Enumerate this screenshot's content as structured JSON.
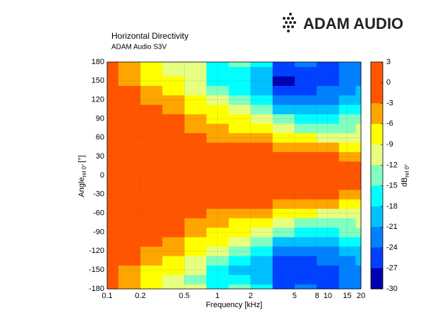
{
  "logo": "ADAM AUDIO",
  "chart_data": {
    "type": "heatmap",
    "title": "Horizontal Directivity",
    "subtitle": "ADAM Audio S3V",
    "xlabel": "Frequency [kHz]",
    "ylabel": "Angle",
    "ylabel_sub": "rel 0°",
    "ylabel_unit": "[°]",
    "colorbar_label": "dB",
    "colorbar_label_sub": "rel 0°",
    "xscale": "log",
    "grid": true,
    "xlim": [
      0.1,
      20
    ],
    "ylim": [
      -180,
      180
    ],
    "xticks": [
      0.1,
      0.2,
      0.5,
      1,
      2,
      5,
      8,
      10,
      15,
      20
    ],
    "yticks": [
      -180,
      -150,
      -120,
      -90,
      -60,
      -30,
      0,
      30,
      60,
      90,
      120,
      150,
      180
    ],
    "x": [
      0.1,
      0.16,
      0.25,
      0.4,
      0.63,
      1,
      1.6,
      2.5,
      4,
      6.3,
      10,
      16,
      20
    ],
    "y": [
      -180,
      -165,
      -150,
      -135,
      -120,
      -105,
      -90,
      -75,
      -60,
      -45,
      -30,
      -15,
      0,
      15,
      30,
      45,
      60,
      75,
      90,
      105,
      120,
      135,
      150,
      165,
      180
    ],
    "z": [
      [
        -1,
        -4,
        -7,
        -9,
        -11,
        -15,
        -14,
        -17,
        -25,
        -23,
        -24,
        -22,
        -21
      ],
      [
        -1,
        -4,
        -7,
        -9,
        -12,
        -17,
        -16,
        -18,
        -24,
        -24,
        -24,
        -22,
        -21
      ],
      [
        -1,
        -3.5,
        -7,
        -8,
        -11,
        -16,
        -18,
        -20,
        -26,
        -25,
        -24,
        -22,
        -21
      ],
      [
        -1,
        -2,
        -5,
        -7,
        -10,
        -13,
        -16,
        -19,
        -24,
        -24,
        -23,
        -21,
        -20
      ],
      [
        -1,
        -1.5,
        -4,
        -5,
        -8,
        -11,
        -13,
        -16,
        -21,
        -22,
        -21,
        -19,
        -18
      ],
      [
        -1,
        -1,
        -2,
        -4,
        -6,
        -8,
        -11,
        -13,
        -18,
        -19,
        -18,
        -17,
        -16
      ],
      [
        -1,
        -1,
        -1.5,
        -2,
        -4,
        -6,
        -8,
        -10,
        -14,
        -15,
        -15,
        -14,
        -13
      ],
      [
        -1,
        -1,
        -1,
        -1.5,
        -3,
        -4,
        -6,
        -7,
        -10,
        -12,
        -13,
        -12,
        -11
      ],
      [
        -1,
        -1,
        -1,
        -1,
        -2,
        -3,
        -3.5,
        -5,
        -6,
        -8,
        -10,
        -10,
        -10
      ],
      [
        -1,
        -1,
        -1,
        -1,
        -1,
        -2,
        -2,
        -2.5,
        -3.5,
        -4,
        -5,
        -7,
        -8
      ],
      [
        -1,
        -1,
        -1,
        -1,
        -1,
        -1,
        -1,
        -1,
        -1.5,
        -2,
        -2.5,
        -3.5,
        -5
      ],
      [
        -1,
        -1,
        -1,
        -1,
        -1,
        -1,
        -1,
        -1,
        -1,
        -1,
        -1,
        -1.5,
        -2
      ],
      [
        0,
        0,
        0,
        0,
        0,
        0,
        0,
        0,
        0,
        0,
        0,
        0,
        0
      ],
      [
        -1,
        -1,
        -1,
        -1,
        -1,
        -1,
        -1,
        -1,
        -1,
        -1,
        -1,
        -1.5,
        -2
      ],
      [
        -1,
        -1,
        -1,
        -1,
        -1,
        -1,
        -1,
        -1,
        -1.5,
        -2,
        -2.5,
        -3.5,
        -5
      ],
      [
        -1,
        -1,
        -1,
        -1,
        -1,
        -2,
        -2,
        -2.5,
        -3.5,
        -4,
        -5,
        -7,
        -8
      ],
      [
        -1,
        -1,
        -1,
        -1,
        -2,
        -3,
        -3.5,
        -5,
        -6,
        -8,
        -10,
        -10,
        -10
      ],
      [
        -1,
        -1,
        -1,
        -1.5,
        -3,
        -4,
        -6,
        -7,
        -10,
        -12,
        -13,
        -12,
        -11
      ],
      [
        -1,
        -1,
        -1.5,
        -2,
        -4,
        -6,
        -8,
        -10,
        -14,
        -15,
        -15,
        -14,
        -13
      ],
      [
        -1,
        -1,
        -2,
        -4,
        -6,
        -8,
        -11,
        -13,
        -18,
        -19,
        -18,
        -17,
        -16
      ],
      [
        -1,
        -1.5,
        -4,
        -5,
        -8,
        -11,
        -13,
        -16,
        -21,
        -22,
        -21,
        -19,
        -18
      ],
      [
        -1,
        -2,
        -5,
        -7,
        -10,
        -13,
        -16,
        -19,
        -24,
        -24,
        -23,
        -21,
        -20
      ],
      [
        -1,
        -3.5,
        -7,
        -8,
        -11,
        -15,
        -17,
        -20,
        -27,
        -25,
        -24,
        -22,
        -21
      ],
      [
        -1,
        -4,
        -7,
        -9,
        -11,
        -16,
        -15,
        -18,
        -25,
        -24,
        -24,
        -22,
        -21
      ],
      [
        -1,
        -4,
        -7,
        -9,
        -11,
        -15,
        -14,
        -17,
        -25,
        -23,
        -24,
        -22,
        -21
      ]
    ],
    "colorbar_ticks": [
      3,
      0,
      -3,
      -6,
      -9,
      -12,
      -15,
      -18,
      -21,
      -24,
      -27,
      -30
    ],
    "colors": [
      "#ff5500",
      "#ff5500",
      "#ffa500",
      "#ffff00",
      "#e6ff80",
      "#80ffc0",
      "#00ffff",
      "#00c0ff",
      "#0080ff",
      "#0040ff",
      "#0000b0"
    ]
  }
}
